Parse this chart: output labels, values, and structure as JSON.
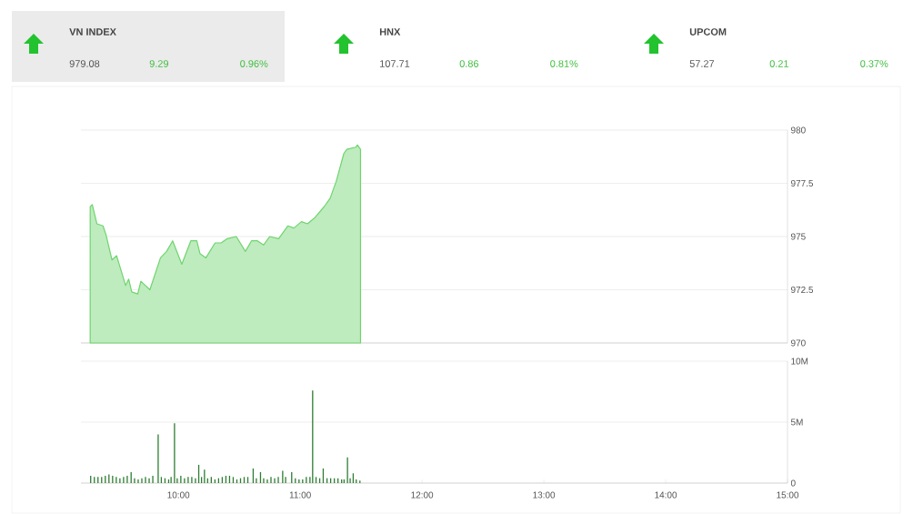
{
  "chart_data": [
    {
      "type": "other",
      "annotations": [
        "VN INDEX",
        "979.08",
        "9.29",
        "0.96%",
        "HNX",
        "107.71",
        "0.86",
        "0.81%",
        "UPCOM",
        "57.27",
        "0.21",
        "0.37%"
      ]
    },
    {
      "type": "area",
      "color": "#6fd46f",
      "grid": "y",
      "tick_labels": "y",
      "xlim": [
        9.2,
        15
      ],
      "ylim": [
        970,
        980
      ],
      "yticks": [
        970,
        972.5,
        975,
        977.5,
        980
      ],
      "x": [
        9.276,
        9.293,
        9.331,
        9.381,
        9.405,
        9.455,
        9.493,
        9.53,
        9.567,
        9.592,
        9.617,
        9.666,
        9.692,
        9.766,
        9.853,
        9.903,
        9.953,
        10.028,
        10.102,
        10.151,
        10.177,
        10.226,
        10.301,
        10.351,
        10.401,
        10.475,
        10.55,
        10.6,
        10.649,
        10.699,
        10.749,
        10.823,
        10.898,
        10.948,
        11.01,
        11.06,
        11.122,
        11.196,
        11.246,
        11.296,
        11.358,
        11.383,
        11.457,
        11.47,
        11.495
      ],
      "values": [
        976.4,
        976.5,
        975.6,
        975.5,
        975.1,
        973.9,
        974.1,
        973.4,
        972.7,
        973.0,
        972.4,
        972.3,
        972.9,
        972.5,
        974.0,
        974.3,
        974.8,
        973.7,
        974.8,
        974.8,
        974.2,
        974.0,
        974.7,
        974.7,
        974.9,
        975.0,
        974.3,
        974.8,
        974.8,
        974.6,
        975.0,
        974.9,
        975.5,
        975.4,
        975.7,
        975.6,
        975.9,
        976.4,
        976.8,
        977.6,
        978.9,
        979.1,
        979.2,
        979.3,
        979.1
      ]
    },
    {
      "type": "bar",
      "color": "#2e7d32",
      "grid": "y",
      "xlim": [
        9.2,
        15
      ],
      "ylim": [
        0,
        10
      ],
      "xticks": [
        {
          "value": 10,
          "label": "10:00"
        },
        {
          "value": 11,
          "label": "11:00"
        },
        {
          "value": 12,
          "label": "12:00"
        },
        {
          "value": 13,
          "label": "13:00"
        },
        {
          "value": 14,
          "label": "14:00"
        },
        {
          "value": 15,
          "label": "15:00"
        }
      ],
      "yticks": [
        {
          "value": 0,
          "label": "0"
        },
        {
          "value": 5,
          "label": "5M"
        },
        {
          "value": 10,
          "label": "10M"
        }
      ],
      "x": [
        9.28,
        9.31,
        9.34,
        9.37,
        9.4,
        9.43,
        9.46,
        9.49,
        9.52,
        9.55,
        9.58,
        9.612,
        9.64,
        9.67,
        9.7,
        9.73,
        9.76,
        9.79,
        9.834,
        9.86,
        9.89,
        9.92,
        9.94,
        9.968,
        9.99,
        10.02,
        10.05,
        10.08,
        10.11,
        10.14,
        10.167,
        10.19,
        10.214,
        10.24,
        10.27,
        10.3,
        10.33,
        10.36,
        10.39,
        10.42,
        10.45,
        10.48,
        10.51,
        10.54,
        10.57,
        10.614,
        10.64,
        10.674,
        10.7,
        10.73,
        10.76,
        10.79,
        10.82,
        10.856,
        10.88,
        10.93,
        10.96,
        10.99,
        11.02,
        11.05,
        11.08,
        11.102,
        11.13,
        11.16,
        11.189,
        11.22,
        11.25,
        11.28,
        11.31,
        11.34,
        11.36,
        11.388,
        11.41,
        11.435,
        11.46,
        11.49
      ],
      "values": [
        0.6,
        0.5,
        0.5,
        0.5,
        0.6,
        0.7,
        0.6,
        0.5,
        0.4,
        0.5,
        0.6,
        0.9,
        0.4,
        0.3,
        0.4,
        0.5,
        0.4,
        0.6,
        4.0,
        0.5,
        0.4,
        0.3,
        0.5,
        4.9,
        0.4,
        0.6,
        0.4,
        0.5,
        0.5,
        0.4,
        1.5,
        0.5,
        1.1,
        0.4,
        0.5,
        0.3,
        0.4,
        0.5,
        0.6,
        0.6,
        0.5,
        0.3,
        0.4,
        0.5,
        0.5,
        1.2,
        0.4,
        0.9,
        0.4,
        0.3,
        0.5,
        0.4,
        0.5,
        1.0,
        0.5,
        0.9,
        0.4,
        0.3,
        0.3,
        0.5,
        0.5,
        7.6,
        0.5,
        0.4,
        1.2,
        0.4,
        0.4,
        0.4,
        0.4,
        0.3,
        0.3,
        2.1,
        0.4,
        0.8,
        0.3,
        0.2
      ]
    }
  ]
}
